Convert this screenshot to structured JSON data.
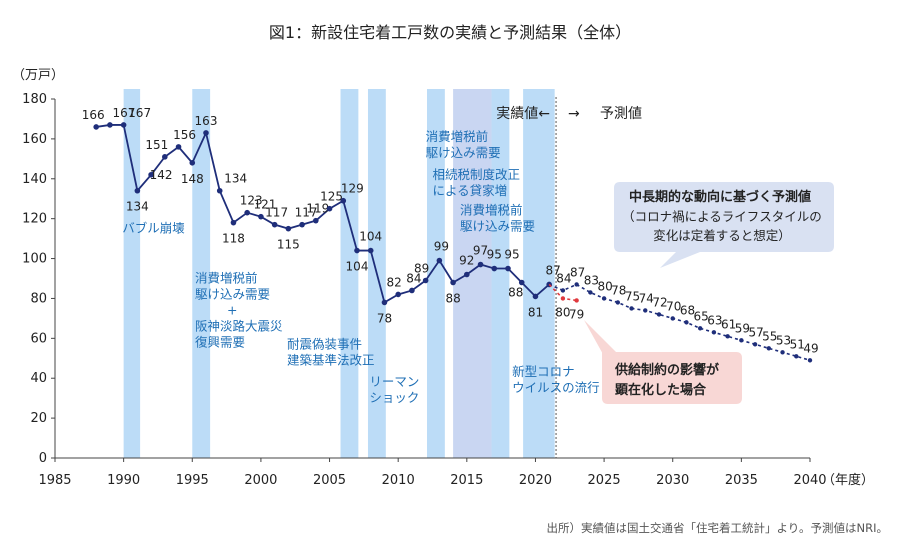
{
  "chart_data": {
    "type": "line",
    "title": "図1：新設住宅着工戸数の実績と予測結果（全体）",
    "ylabel": "（万戸）",
    "xlabel": "（年度）",
    "xlim": [
      1985,
      2040
    ],
    "ylim": [
      0,
      180
    ],
    "x_ticks": [
      "1985",
      "1990",
      "1995",
      "2000",
      "2005",
      "2010",
      "2015",
      "2020",
      "2025",
      "2030",
      "2035",
      "2040"
    ],
    "y_ticks": [
      "0",
      "20",
      "40",
      "60",
      "80",
      "100",
      "120",
      "140",
      "160",
      "180"
    ],
    "grid": false,
    "divider": {
      "x": 2021.5,
      "left_label": "実績値←",
      "arrow": "→",
      "right_label": "予測値"
    },
    "series": [
      {
        "kind": "actual",
        "color": "#1f2e7a",
        "x": [
          1988,
          1989,
          1990,
          1991,
          1992,
          1993,
          1994,
          1995,
          1996,
          1997,
          1998,
          1999,
          2000,
          2001,
          2002,
          2003,
          2004,
          2005,
          2006,
          2007,
          2008,
          2009,
          2010,
          2011,
          2012,
          2013,
          2014,
          2015,
          2016,
          2017,
          2018,
          2019,
          2020,
          2021
        ],
        "y": [
          166,
          167,
          167,
          134,
          142,
          151,
          156,
          148,
          163,
          134,
          118,
          123,
          121,
          117,
          115,
          117,
          119,
          125,
          129,
          104,
          104,
          78,
          82,
          84,
          89,
          99,
          88,
          92,
          97,
          95,
          95,
          88,
          81,
          87
        ],
        "labels": [
          "166",
          "167",
          "167",
          "134",
          "142",
          "151",
          "156",
          "148",
          "163",
          "134",
          "118",
          "123",
          "121",
          "117",
          "115",
          "117",
          "119",
          "125",
          "129",
          "104",
          "104",
          "78",
          "82",
          "84",
          "89",
          "99",
          "88",
          "92",
          "97",
          "95",
          "95",
          "88",
          "81",
          "87"
        ]
      },
      {
        "kind": "forecast",
        "color": "#1f2e7a",
        "x": [
          2022,
          2023,
          2024,
          2025,
          2026,
          2027,
          2028,
          2029,
          2030,
          2031,
          2032,
          2033,
          2034,
          2035,
          2036,
          2037,
          2038,
          2039,
          2040
        ],
        "y": [
          84,
          87,
          83,
          80,
          78,
          75,
          74,
          72,
          70,
          68,
          65,
          63,
          61,
          59,
          57,
          55,
          53,
          51,
          49
        ],
        "labels": [
          "84",
          "87",
          "83",
          "80",
          "78",
          "75",
          "74",
          "72",
          "70",
          "68",
          "65",
          "63",
          "61",
          "59",
          "57",
          "55",
          "53",
          "51",
          "49"
        ]
      },
      {
        "kind": "supply_constrained",
        "color": "#e0393e",
        "x": [
          2022,
          2023
        ],
        "y": [
          80,
          79
        ],
        "labels": [
          "80",
          "79"
        ]
      }
    ],
    "shaded_periods": [
      {
        "x0": 1990,
        "x1": 1991.2,
        "color": "#bcdcf7"
      },
      {
        "x0": 1995,
        "x1": 1996.3,
        "color": "#bcdcf7"
      },
      {
        "x0": 2005.8,
        "x1": 2007.1,
        "color": "#bcdcf7"
      },
      {
        "x0": 2007.8,
        "x1": 2009.1,
        "color": "#bcdcf7"
      },
      {
        "x0": 2012.1,
        "x1": 2013.4,
        "color": "#bcdcf7"
      },
      {
        "x0": 2014,
        "x1": 2016.8,
        "color": "#c9d6f2"
      },
      {
        "x0": 2016.8,
        "x1": 2018.1,
        "color": "#bcdcf7"
      },
      {
        "x0": 2019.1,
        "x1": 2021.4,
        "color": "#bcdcf7"
      }
    ],
    "annotations": [
      {
        "lines": [
          "バブル崩壊"
        ],
        "x": 1989.9,
        "y": 113
      },
      {
        "lines": [
          "消費増税前",
          "駆け込み需要",
          "+",
          "阪神淡路大震災",
          "復興需要"
        ],
        "x": 1995.2,
        "y": 88
      },
      {
        "lines": [
          "耐震偽装事件",
          "建築基準法改正"
        ],
        "x": 2001.9,
        "y": 55
      },
      {
        "lines": [
          "リーマン",
          "ショック"
        ],
        "x": 2007.9,
        "y": 36
      },
      {
        "lines": [
          "消費増税前",
          "駆け込み需要"
        ],
        "x": 2012.0,
        "y": 159
      },
      {
        "lines": [
          "相続税制度改正",
          "による貸家増"
        ],
        "x": 2012.5,
        "y": 140
      },
      {
        "lines": [
          "消費増税前",
          "駆け込み需要"
        ],
        "x": 2014.5,
        "y": 122
      },
      {
        "lines": [
          "新型コロナ",
          "ウイルスの流行"
        ],
        "x": 2018.3,
        "y": 41
      }
    ],
    "callouts": [
      {
        "bold": "中長期的な動向に基づく予測値",
        "lines": [
          "（コロナ禍によるライフスタイルの",
          "変化は定着すると想定）"
        ],
        "color": "#d9e1f2"
      },
      {
        "bold": "供給制約の影響が",
        "lines": [
          "顕在化した場合"
        ],
        "color": "#f8d7d5"
      }
    ],
    "source": "出所）実績値は国土交通省「住宅着工統計」より。予測値はNRI。"
  }
}
